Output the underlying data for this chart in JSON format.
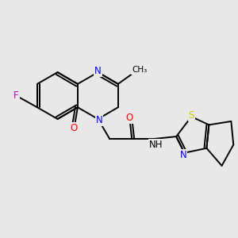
{
  "background_color": "#e8e8e8",
  "bond_color": "#000000",
  "atom_colors": {
    "N": "#0000ff",
    "O": "#ff0000",
    "F": "#cc00cc",
    "S": "#cccc00",
    "C": "#000000"
  },
  "font_size": 8.5,
  "bond_width": 1.4,
  "xlim": [
    0,
    10
  ],
  "ylim": [
    0,
    10
  ]
}
